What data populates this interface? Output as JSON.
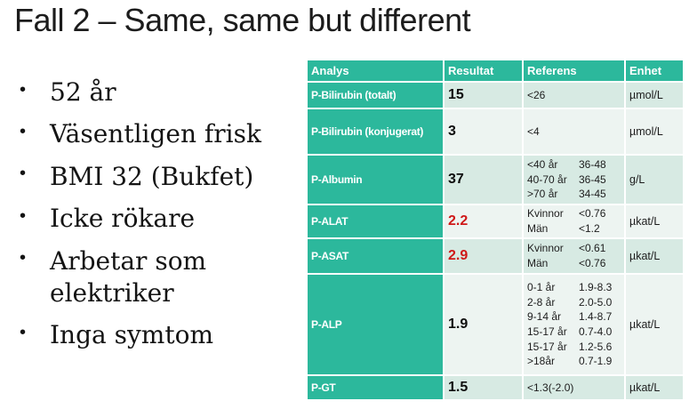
{
  "slide": {
    "title": "Fall 2 – Same, same but different",
    "bullets": [
      "52 år",
      "Väsentligen frisk",
      "BMI 32 (Bukfet)",
      "Icke rökare",
      "Arbetar som elektriker",
      "Inga symtom"
    ]
  },
  "table": {
    "headers": [
      "Analys",
      "Resultat",
      "Referens",
      "Enhet"
    ],
    "rows": [
      {
        "analys": "P-Bilirubin (totalt)",
        "resultat": "15",
        "alert": false,
        "referens": [
          [
            "<26"
          ]
        ],
        "enhet": "µmol/L"
      },
      {
        "analys": "P-Bilirubin (konjugerat)",
        "resultat": "3",
        "alert": false,
        "referens": [
          [
            "<4"
          ]
        ],
        "enhet": "µmol/L"
      },
      {
        "analys": "P-Albumin",
        "resultat": "37",
        "alert": false,
        "referens": [
          [
            "<40 år",
            "36-48"
          ],
          [
            "40-70 år",
            "36-45"
          ],
          [
            ">70 år",
            "34-45"
          ]
        ],
        "enhet": "g/L"
      },
      {
        "analys": "P-ALAT",
        "resultat": "2.2",
        "alert": true,
        "referens": [
          [
            "Kvinnor",
            "<0.76"
          ],
          [
            "Män",
            "<1.2"
          ]
        ],
        "enhet": "µkat/L"
      },
      {
        "analys": "P-ASAT",
        "resultat": "2.9",
        "alert": true,
        "referens": [
          [
            "Kvinnor",
            "<0.61"
          ],
          [
            "Män",
            "<0.76"
          ]
        ],
        "enhet": "µkat/L"
      },
      {
        "analys": "P-ALP",
        "resultat": "1.9",
        "alert": false,
        "referens": [
          [
            "0-1 år",
            "1.9-8.3"
          ],
          [
            "2-8 år",
            "2.0-5.0"
          ],
          [
            "9-14 år",
            "1.4-8.7"
          ],
          [
            "15-17 år",
            "0.7-4.0"
          ],
          [
            "15-17 år",
            "1.2-5.6"
          ],
          [
            ">18år",
            "0.7-1.9"
          ]
        ],
        "enhet": "µkat/L"
      },
      {
        "analys": "P-GT",
        "resultat": "1.5",
        "alert": false,
        "referens": [
          [
            "<1.3(-2.0)"
          ]
        ],
        "enhet": "µkat/L"
      }
    ],
    "colors": {
      "accent_teal": "#2cb89c",
      "row_mint": "#d7eae3",
      "row_light": "#edf4f1",
      "alert_red": "#cf1818"
    }
  }
}
